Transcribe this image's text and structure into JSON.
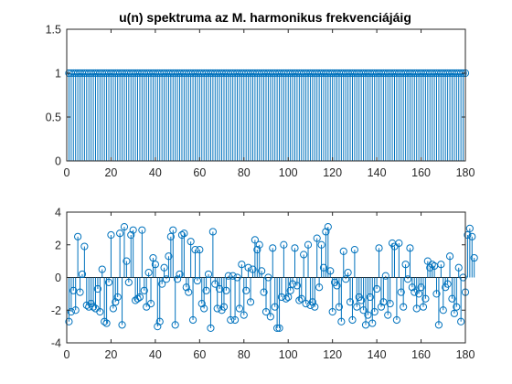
{
  "colors": {
    "series": "#0072bd",
    "axis": "#262626",
    "background": "#ffffff"
  },
  "chart_data": [
    {
      "type": "stem",
      "title": "u(n) spektruma az M. harmonikus frekvenciájáig",
      "xlabel": "",
      "ylabel": "",
      "xlim": [
        0,
        180
      ],
      "ylim": [
        0,
        1.5
      ],
      "grid": false,
      "xticks": [
        0,
        20,
        40,
        60,
        80,
        100,
        120,
        140,
        160,
        180
      ],
      "xtick_labels": [
        "0",
        "20",
        "40",
        "60",
        "80",
        "100",
        "120",
        "140",
        "160",
        "180"
      ],
      "yticks": [
        0,
        0.5,
        1,
        1.5
      ],
      "ytick_labels": [
        "0",
        "0.5",
        "1",
        "1.5"
      ],
      "series": [
        {
          "x_start": 1,
          "x_end": 180,
          "x_step": 1,
          "constant_value": 1
        }
      ]
    },
    {
      "type": "stem",
      "title": "",
      "xlabel": "",
      "ylabel": "",
      "xlim": [
        0,
        180
      ],
      "ylim": [
        -4,
        4
      ],
      "grid": false,
      "xticks": [
        0,
        20,
        40,
        60,
        80,
        100,
        120,
        140,
        160,
        180
      ],
      "xtick_labels": [
        "0",
        "20",
        "40",
        "60",
        "80",
        "100",
        "120",
        "140",
        "160",
        "180"
      ],
      "yticks": [
        -4,
        -2,
        0,
        2,
        4
      ],
      "ytick_labels": [
        "-4",
        "-2",
        "0",
        "2",
        "4"
      ],
      "series": [
        {
          "x_start": 1,
          "x_step": 1,
          "values": [
            -2.7,
            -2.1,
            -0.8,
            -2.0,
            2.5,
            -0.9,
            0.2,
            1.9,
            -1.7,
            -1.8,
            -1.6,
            -1.8,
            -1.9,
            -0.7,
            -2.1,
            0.5,
            -2.7,
            -2.8,
            -0.3,
            2.6,
            -1.9,
            -1.5,
            -1.2,
            2.7,
            -2.9,
            3.1,
            1.0,
            -0.3,
            2.6,
            2.9,
            -1.4,
            -1.3,
            -1.2,
            2.9,
            -0.8,
            -1.8,
            0.3,
            -1.6,
            1.2,
            0.8,
            -3.0,
            -2.7,
            -0.4,
            0.6,
            -0.1,
            1.3,
            2.5,
            2.9,
            -2.9,
            -0.1,
            0.2,
            2.6,
            2.7,
            -0.6,
            -0.9,
            2.2,
            -2.6,
            1.7,
            -0.2,
            1.7,
            -1.6,
            -1.9,
            -0.8,
            0.2,
            -3.1,
            2.8,
            -0.4,
            -1.9,
            -0.7,
            -2.0,
            -1.8,
            -0.8,
            0.1,
            -2.6,
            0.1,
            -2.6,
            0.0,
            -1.9,
            0.8,
            -2.3,
            -0.8,
            0.6,
            -1.5,
            0.5,
            2.3,
            1.7,
            2.0,
            0.4,
            -0.9,
            -2.1,
            0.0,
            -2.4,
            1.8,
            -1.8,
            -3.1,
            -3.1,
            -1.2,
            2.0,
            -1.3,
            -1.2,
            -0.8,
            -0.4,
            1.8,
            -0.5,
            -1.4,
            -1.3,
            1.4,
            -1.6,
            2.0,
            -1.7,
            -1.5,
            -1.8,
            2.4,
            -0.6,
            2.0,
            0.6,
            2.8,
            3.1,
            0.4,
            -2.1,
            -0.3,
            -0.5,
            -1.8,
            -2.7,
            1.6,
            -0.1,
            0.3,
            -1.5,
            -2.6,
            1.7,
            -1.8,
            -1.2,
            -1.4,
            -2.0,
            -2.9,
            -2.3,
            -1.2,
            -2.8,
            -2.1,
            -0.7,
            1.8,
            -1.8,
            -1.5,
            0.1,
            -2.3,
            -1.6,
            2.1,
            1.9,
            -2.6,
            2.1,
            -0.9,
            -1.8,
            0.8,
            -0.1,
            1.8,
            -0.6,
            -0.9,
            -1.9,
            -1.0,
            -0.6,
            -1.8,
            -1.3,
            1.0,
            0.6,
            0.8,
            0.7,
            -1.0,
            -2.9,
            0.8,
            -2.0,
            -0.6,
            -0.4,
            1.3,
            -1.3,
            -2.2,
            -1.8,
            0.6,
            -2.7,
            0.0,
            -0.9,
            2.6,
            3.0,
            2.5,
            1.2
          ]
        }
      ]
    }
  ]
}
